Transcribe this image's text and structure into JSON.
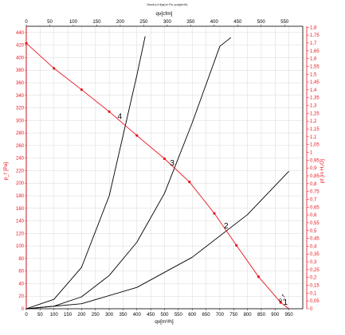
{
  "chart_data": {
    "type": "line",
    "title": "Druck p f=f(qv) in Pa, q=qv(m³/h)",
    "x_bottom": {
      "label": "qv[m³/h]",
      "min": 0,
      "max": 1000,
      "ticks": [
        0,
        50,
        100,
        150,
        200,
        250,
        300,
        350,
        400,
        450,
        500,
        550,
        600,
        650,
        700,
        750,
        800,
        850,
        900,
        950
      ]
    },
    "x_top": {
      "label": "qv[cfm]",
      "min": 0,
      "max": 588.6,
      "ticks": [
        0,
        50,
        100,
        150,
        200,
        250,
        300,
        350,
        400,
        450,
        500,
        550
      ]
    },
    "y_left": {
      "label": "p_f [Pa]",
      "min": 0,
      "max": 450,
      "ticks": [
        0,
        20,
        40,
        60,
        80,
        100,
        120,
        140,
        160,
        180,
        200,
        220,
        240,
        260,
        280,
        300,
        320,
        340,
        360,
        380,
        400,
        420,
        440
      ]
    },
    "y_right": {
      "label": "pf [in H₂O]",
      "min": 0,
      "max": 1.8067,
      "ticks": [
        "0",
        "0,05",
        "0,1",
        "0,15",
        "0,2",
        "0,25",
        "0,3",
        "0,35",
        "0,4",
        "0,45",
        "0,5",
        "0,55",
        "0,6",
        "0,65",
        "0,7",
        "0,75",
        "0,8",
        "0,85",
        "0,9",
        "0,95",
        "1",
        "1,05",
        "1,1",
        "1,15",
        "1,2",
        "1,25",
        "1,3",
        "1,35",
        "1,4",
        "1,45",
        "1,5",
        "1,55",
        "1,6",
        "1,65",
        "1,7",
        "1,75",
        "1,8"
      ]
    },
    "fan_curve": {
      "name": "p_f",
      "color": "#e8141e",
      "points": [
        [
          0,
          423
        ],
        [
          100,
          383
        ],
        [
          200,
          349
        ],
        [
          300,
          314
        ],
        [
          400,
          276
        ],
        [
          500,
          239
        ],
        [
          590,
          202
        ],
        [
          680,
          152
        ],
        [
          760,
          101
        ],
        [
          840,
          51
        ],
        [
          920,
          10
        ],
        [
          950,
          0
        ]
      ]
    },
    "system_curves": [
      {
        "color": "#000000",
        "points": [
          [
            0,
            0
          ],
          [
            100,
            15
          ],
          [
            200,
            66
          ],
          [
            300,
            180
          ],
          [
            400,
            372
          ],
          [
            430,
            434
          ]
        ]
      },
      {
        "color": "#000000",
        "points": [
          [
            0,
            0
          ],
          [
            100,
            4
          ],
          [
            200,
            19
          ],
          [
            300,
            53
          ],
          [
            400,
            106
          ],
          [
            500,
            184
          ],
          [
            600,
            296
          ],
          [
            700,
            418
          ],
          [
            740,
            432
          ]
        ]
      },
      {
        "color": "#000000",
        "points": [
          [
            0,
            0
          ],
          [
            200,
            8
          ],
          [
            400,
            34
          ],
          [
            600,
            82
          ],
          [
            800,
            150
          ],
          [
            950,
            219
          ]
        ]
      }
    ],
    "operating_points": [
      {
        "label": "4",
        "x": 335,
        "y": 301
      },
      {
        "label": "3",
        "x": 525,
        "y": 227
      },
      {
        "label": "2",
        "x": 720,
        "y": 127
      },
      {
        "label": "1",
        "x": 935,
        "y": 5
      }
    ],
    "fan_curve_label": "p_f",
    "grid": true
  }
}
